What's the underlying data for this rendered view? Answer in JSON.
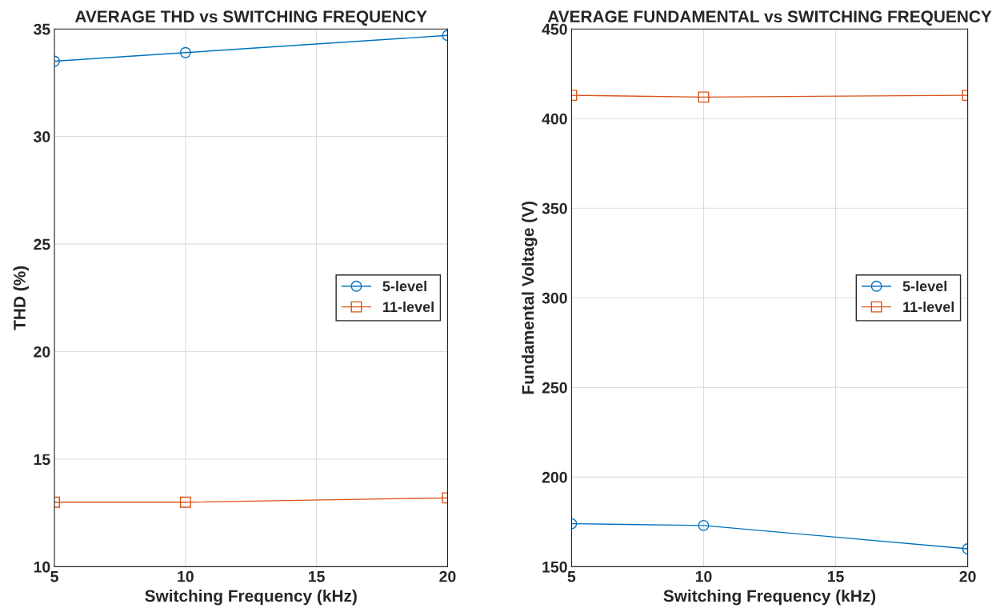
{
  "chart_data": [
    {
      "type": "line",
      "title": "AVERAGE THD vs SWITCHING FREQUENCY",
      "xlabel": "Switching Frequency (kHz)",
      "ylabel": "THD (%)",
      "x": [
        5,
        10,
        20
      ],
      "series": [
        {
          "name": "5-level",
          "color": "#0072bd",
          "marker": "circle",
          "values": [
            33.5,
            33.9,
            34.7
          ]
        },
        {
          "name": "11-level",
          "color": "#d95319",
          "marker": "square",
          "values": [
            13.0,
            13.0,
            13.2
          ]
        }
      ],
      "xlim": [
        5,
        20
      ],
      "xticks": [
        5,
        10,
        15,
        20
      ],
      "ylim": [
        10,
        35
      ],
      "yticks": [
        10,
        15,
        20,
        25,
        30,
        35
      ],
      "grid": true,
      "legend": "right"
    },
    {
      "type": "line",
      "title": "AVERAGE FUNDAMENTAL vs SWITCHING FREQUENCY",
      "xlabel": "Switching Frequency (kHz)",
      "ylabel": "Fundamental Voltage (V)",
      "x": [
        5,
        10,
        20
      ],
      "series": [
        {
          "name": "5-level",
          "color": "#0072bd",
          "marker": "circle",
          "values": [
            174,
            173,
            160
          ]
        },
        {
          "name": "11-level",
          "color": "#d95319",
          "marker": "square",
          "values": [
            413,
            412,
            413
          ]
        }
      ],
      "xlim": [
        5,
        20
      ],
      "xticks": [
        5,
        10,
        15,
        20
      ],
      "ylim": [
        150,
        450
      ],
      "yticks": [
        150,
        200,
        250,
        300,
        350,
        400,
        450
      ],
      "grid": true,
      "legend": "right"
    }
  ]
}
